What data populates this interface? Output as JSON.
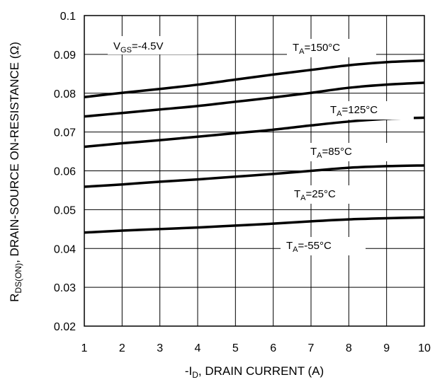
{
  "chart_data": {
    "type": "line",
    "xlabel": {
      "prefix": "-I",
      "sub": "D",
      "suffix": ", DRAIN CURRENT (A)"
    },
    "ylabel": {
      "prefix": "R",
      "sub": "DS(ON)",
      "suffix": ",   DRAIN-SOURCE ON-RESISTANCE (Ω)"
    },
    "xlim": [
      1,
      10
    ],
    "ylim": [
      0.02,
      0.1
    ],
    "xticks": [
      "1",
      "2",
      "3",
      "4",
      "5",
      "6",
      "7",
      "8",
      "9",
      "10"
    ],
    "yticks": [
      "0.02",
      "0.03",
      "0.04",
      "0.05",
      "0.06",
      "0.07",
      "0.08",
      "0.09",
      "0.1"
    ],
    "grid": true,
    "condition": {
      "prefix": "V",
      "sub": "GS",
      "suffix": "=-4.5V"
    },
    "x": [
      1,
      2,
      3,
      4,
      5,
      6,
      7,
      8,
      9,
      10
    ],
    "series": [
      {
        "name": {
          "prefix": "T",
          "sub": "A",
          "suffix": "=150°C"
        },
        "values": [
          0.079,
          0.0801,
          0.0811,
          0.0822,
          0.0835,
          0.0848,
          0.086,
          0.0872,
          0.088,
          0.0884
        ]
      },
      {
        "name": {
          "prefix": "T",
          "sub": "A",
          "suffix": "=125°C"
        },
        "values": [
          0.074,
          0.0749,
          0.0758,
          0.0767,
          0.0778,
          0.0789,
          0.0801,
          0.0814,
          0.0822,
          0.0827
        ]
      },
      {
        "name": {
          "prefix": "T",
          "sub": "A",
          "suffix": "=85°C"
        },
        "values": [
          0.0662,
          0.0671,
          0.0679,
          0.0688,
          0.0697,
          0.0706,
          0.0717,
          0.0727,
          0.0734,
          0.0737
        ]
      },
      {
        "name": {
          "prefix": "T",
          "sub": "A",
          "suffix": "=25°C"
        },
        "values": [
          0.0559,
          0.0565,
          0.0572,
          0.0578,
          0.0585,
          0.0592,
          0.06,
          0.0608,
          0.0612,
          0.0614
        ]
      },
      {
        "name": {
          "prefix": "T",
          "sub": "A",
          "suffix": "=-55°C"
        },
        "values": [
          0.0441,
          0.0446,
          0.045,
          0.0454,
          0.0459,
          0.0464,
          0.047,
          0.0475,
          0.0478,
          0.048
        ]
      }
    ],
    "line_color": "#000000",
    "grid_color": "#000000"
  }
}
